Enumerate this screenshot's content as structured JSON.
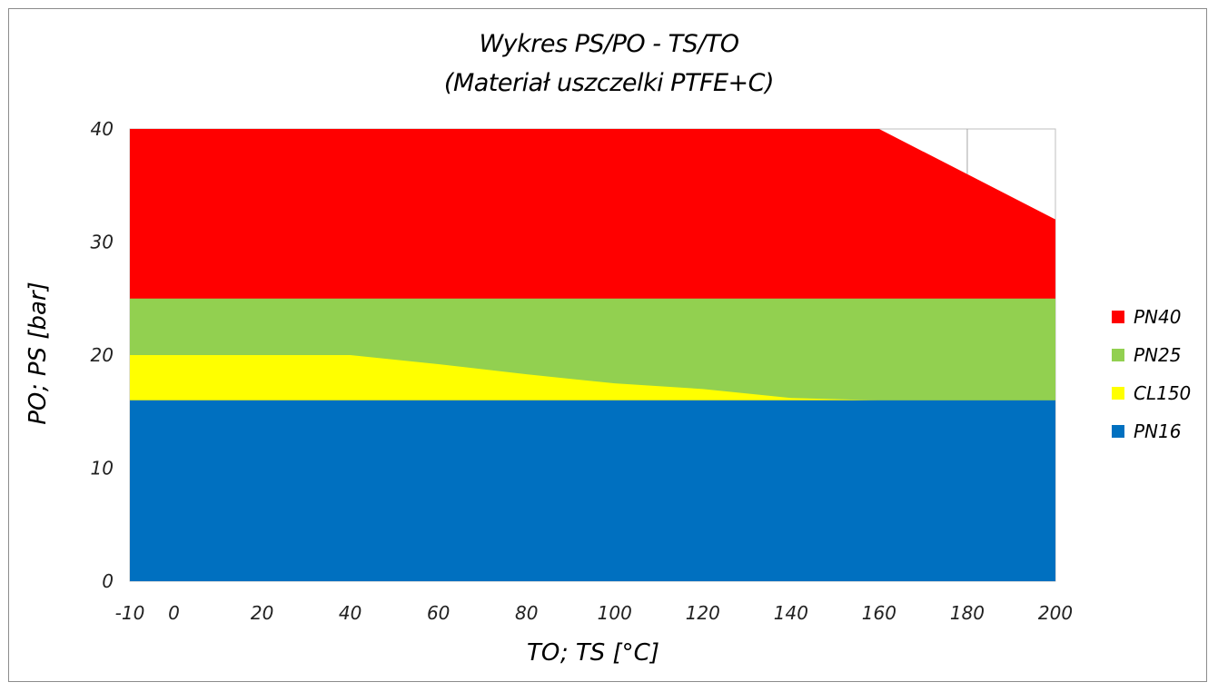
{
  "chart_data": {
    "type": "area",
    "title": "Wykres PS/PO - TS/TO",
    "subtitle": "(Materiał uszczelki PTFE+C)",
    "xlabel": "TO; TS [°C]",
    "ylabel": "PO; PS  [bar]",
    "xlim": [
      -10,
      200
    ],
    "ylim": [
      0,
      40
    ],
    "x_ticks": [
      "-10",
      "0",
      "20",
      "40",
      "60",
      "80",
      "100",
      "120",
      "140",
      "160",
      "180",
      "200"
    ],
    "y_ticks": [
      "0",
      "10",
      "20",
      "30",
      "40"
    ],
    "grid": false,
    "legend_position": "right",
    "series": [
      {
        "name": "PN40",
        "color": "#ff0000",
        "points": [
          [
            -10,
            40
          ],
          [
            0,
            40
          ],
          [
            20,
            40
          ],
          [
            40,
            40
          ],
          [
            60,
            40
          ],
          [
            80,
            40
          ],
          [
            100,
            40
          ],
          [
            120,
            40
          ],
          [
            140,
            40
          ],
          [
            160,
            40
          ],
          [
            180,
            36
          ],
          [
            200,
            32
          ]
        ]
      },
      {
        "name": "PN25",
        "color": "#92d050",
        "points": [
          [
            -10,
            25
          ],
          [
            0,
            25
          ],
          [
            20,
            25
          ],
          [
            40,
            25
          ],
          [
            60,
            25
          ],
          [
            80,
            25
          ],
          [
            100,
            25
          ],
          [
            120,
            25
          ],
          [
            140,
            25
          ],
          [
            160,
            25
          ],
          [
            180,
            25
          ],
          [
            200,
            25
          ]
        ]
      },
      {
        "name": "CL150",
        "color": "#ffff00",
        "points": [
          [
            -10,
            20
          ],
          [
            0,
            20
          ],
          [
            20,
            20
          ],
          [
            40,
            20
          ],
          [
            60,
            19.2
          ],
          [
            80,
            18.3
          ],
          [
            100,
            17.5
          ],
          [
            120,
            17
          ],
          [
            140,
            16.2
          ],
          [
            160,
            16
          ],
          [
            180,
            16
          ],
          [
            200,
            16
          ]
        ]
      },
      {
        "name": "PN16",
        "color": "#0070c0",
        "points": [
          [
            -10,
            16
          ],
          [
            0,
            16
          ],
          [
            20,
            16
          ],
          [
            40,
            16
          ],
          [
            60,
            16
          ],
          [
            80,
            16
          ],
          [
            100,
            16
          ],
          [
            120,
            16
          ],
          [
            140,
            16
          ],
          [
            160,
            16
          ],
          [
            180,
            16
          ],
          [
            200,
            16
          ]
        ]
      }
    ]
  }
}
